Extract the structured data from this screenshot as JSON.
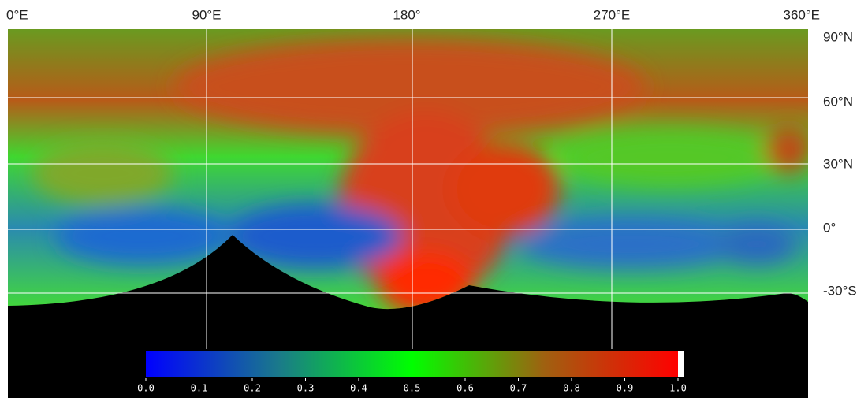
{
  "longitude_labels": [
    "0°E",
    "90°E",
    "180°",
    "270°E",
    "360°E"
  ],
  "latitude_labels": [
    "90°N",
    "60°N",
    "30°N",
    "0°",
    "-30°S"
  ],
  "colorbar": {
    "ticks": [
      {
        "value": 0,
        "label": "0.0"
      },
      {
        "value": 0.1,
        "label": "0.1"
      },
      {
        "value": 0.2,
        "label": "0.2"
      },
      {
        "value": 0.3,
        "label": "0.3"
      },
      {
        "value": 0.4,
        "label": "0.4"
      },
      {
        "value": 0.5,
        "label": "0.5"
      },
      {
        "value": 0.6,
        "label": "0.6"
      },
      {
        "value": 0.7,
        "label": "0.7"
      },
      {
        "value": 0.8,
        "label": "0.8"
      },
      {
        "value": 0.9,
        "label": "0.9"
      },
      {
        "value": 1,
        "label": "1.0"
      }
    ]
  }
}
